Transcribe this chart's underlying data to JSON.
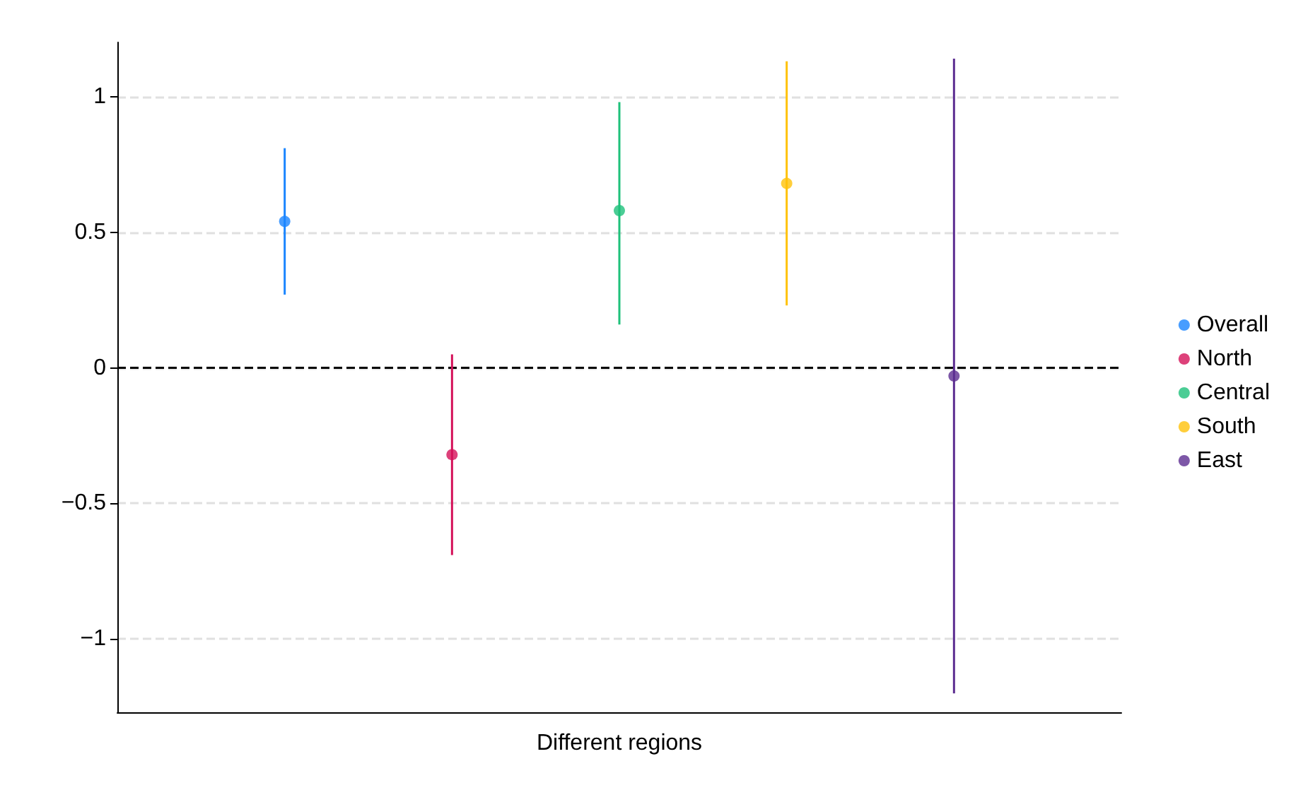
{
  "chart_data": {
    "type": "scatter",
    "xlabel": "Different regions",
    "categories": [
      null,
      null,
      null,
      null,
      null
    ],
    "series": [
      {
        "name": "Overall",
        "color": "#1a85ff",
        "values": [
          0.54,
          null,
          null,
          null,
          null
        ],
        "errors": [
          [
            0.27,
            0.81
          ],
          null,
          null,
          null,
          null
        ]
      },
      {
        "name": "North",
        "color": "#d41159",
        "values": [
          null,
          -0.32,
          null,
          null,
          null
        ],
        "errors": [
          null,
          [
            -0.69,
            0.05
          ],
          null,
          null,
          null
        ]
      },
      {
        "name": "Central",
        "color": "#1ec17a",
        "values": [
          null,
          null,
          0.58,
          null,
          null
        ],
        "errors": [
          null,
          null,
          [
            0.16,
            0.98
          ],
          null,
          null
        ]
      },
      {
        "name": "South",
        "color": "#ffc20a",
        "values": [
          null,
          null,
          null,
          0.68,
          null
        ],
        "errors": [
          null,
          null,
          null,
          [
            0.23,
            1.13
          ],
          null
        ]
      },
      {
        "name": "East",
        "color": "#5c2d91",
        "values": [
          null,
          null,
          null,
          null,
          -0.03
        ],
        "errors": [
          null,
          null,
          null,
          null,
          [
            -1.2,
            1.14
          ]
        ]
      }
    ],
    "ylim": [
      -1.27,
      1.2
    ],
    "yticks": [
      {
        "value": -1,
        "label": "−1"
      },
      {
        "value": -0.5,
        "label": "−0.5"
      },
      0,
      0.5,
      1
    ],
    "ref_lines": [
      {
        "axis": "y",
        "value": 0,
        "color": "#000000",
        "line_style": "dashed"
      }
    ],
    "grid": "y",
    "legend": "right",
    "marker": "circle"
  }
}
